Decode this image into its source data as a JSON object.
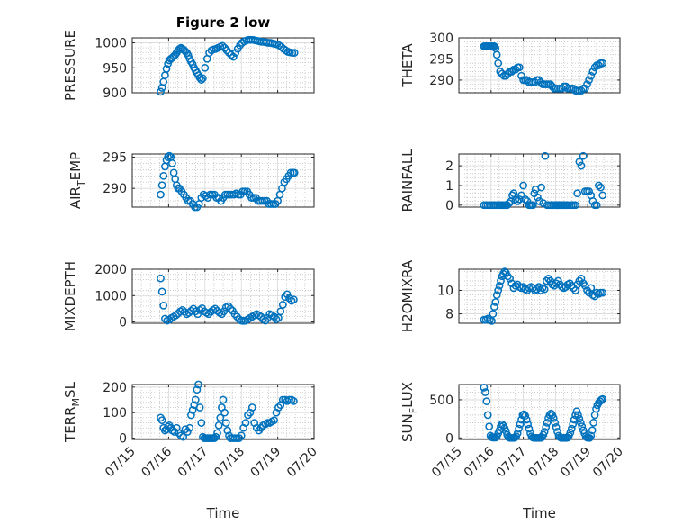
{
  "figure": {
    "title": "Figure 2 low",
    "marker_color": "#0072BD",
    "axis_color": "#262626",
    "grid_color": "#B0B0B0"
  },
  "chart_data": [
    {
      "id": "pressure",
      "type": "scatter",
      "title": "Figure 2 low",
      "xlabel": "",
      "ylabel": "PRESSURE",
      "ylabel_sub": null,
      "ylim": [
        900,
        1010
      ],
      "yticks": [
        "900",
        "950",
        "1000"
      ],
      "ytick_values": [
        900,
        950,
        1000
      ],
      "x": [
        15.78,
        15.82,
        15.86,
        15.9,
        15.94,
        15.98,
        16.02,
        16.06,
        16.1,
        16.14,
        16.18,
        16.22,
        16.26,
        16.3,
        16.34,
        16.38,
        16.42,
        16.46,
        16.5,
        16.54,
        16.58,
        16.62,
        16.66,
        16.7,
        16.74,
        16.78,
        16.82,
        16.86,
        16.9,
        16.94,
        17.0,
        17.06,
        17.12,
        17.18,
        17.24,
        17.3,
        17.36,
        17.42,
        17.48,
        17.54,
        17.6,
        17.66,
        17.72,
        17.78,
        17.84,
        17.9,
        17.96,
        18.02,
        18.08,
        18.14,
        18.2,
        18.26,
        18.32,
        18.38,
        18.44,
        18.5,
        18.56,
        18.62,
        18.68,
        18.74,
        18.8,
        18.86,
        18.92,
        18.98,
        19.04,
        19.1,
        19.16,
        19.22,
        19.28,
        19.34,
        19.4,
        19.46
      ],
      "y": [
        902,
        910,
        922,
        935,
        948,
        958,
        965,
        968,
        970,
        973,
        976,
        980,
        985,
        988,
        990,
        988,
        986,
        983,
        980,
        975,
        968,
        962,
        957,
        950,
        945,
        940,
        935,
        930,
        926,
        929,
        950,
        968,
        980,
        985,
        987,
        988,
        990,
        992,
        994,
        990,
        985,
        980,
        976,
        972,
        980,
        988,
        995,
        1000,
        1003,
        1005,
        1006,
        1006,
        1006,
        1005,
        1004,
        1003,
        1002,
        1002,
        1001,
        1000,
        1000,
        999,
        998,
        997,
        995,
        992,
        988,
        985,
        982,
        981,
        980,
        980
      ]
    },
    {
      "id": "theta",
      "type": "scatter",
      "xlabel": "",
      "ylabel": "THETA",
      "ylabel_sub": null,
      "ylim": [
        287,
        300
      ],
      "yticks": [
        "290",
        "295",
        "300"
      ],
      "ytick_values": [
        290,
        295,
        300
      ],
      "x": [
        15.78,
        15.82,
        15.86,
        15.9,
        15.94,
        15.98,
        16.02,
        16.06,
        16.1,
        16.14,
        16.18,
        16.22,
        16.28,
        16.34,
        16.4,
        16.46,
        16.52,
        16.58,
        16.64,
        16.7,
        16.76,
        16.82,
        16.88,
        16.94,
        17.0,
        17.06,
        17.12,
        17.18,
        17.24,
        17.3,
        17.36,
        17.42,
        17.48,
        17.54,
        17.6,
        17.66,
        17.72,
        17.78,
        17.84,
        17.9,
        17.96,
        18.02,
        18.08,
        18.14,
        18.2,
        18.26,
        18.32,
        18.38,
        18.44,
        18.5,
        18.56,
        18.62,
        18.68,
        18.74,
        18.8,
        18.86,
        18.92,
        18.98,
        19.04,
        19.1,
        19.16,
        19.22,
        19.28,
        19.34,
        19.4,
        19.46
      ],
      "y": [
        298,
        298,
        298,
        298,
        298,
        298,
        298,
        298,
        298,
        297.5,
        296,
        294,
        292,
        291.5,
        291,
        291,
        291.5,
        292,
        292,
        292.5,
        292.5,
        293,
        293,
        291,
        290,
        290,
        290,
        289.5,
        289.5,
        289.5,
        289.5,
        290,
        290,
        289.5,
        289,
        289,
        289,
        289,
        289,
        288.5,
        288,
        288,
        288,
        288,
        288,
        288.5,
        288.5,
        288,
        288,
        288,
        288,
        287.5,
        287.5,
        287.5,
        287.5,
        288,
        288,
        289,
        290,
        291,
        292,
        293,
        293.5,
        293.5,
        294,
        294
      ]
    },
    {
      "id": "air_temp",
      "type": "scatter",
      "xlabel": "",
      "ylabel": "AIR",
      "ylabel_sub": "T",
      "ylabel_tail": "EMP",
      "ylim": [
        287,
        295.5
      ],
      "yticks": [
        "290",
        "295"
      ],
      "ytick_values": [
        290,
        295
      ],
      "x": [
        15.78,
        15.82,
        15.86,
        15.9,
        15.94,
        15.98,
        16.02,
        16.06,
        16.1,
        16.14,
        16.18,
        16.22,
        16.26,
        16.3,
        16.36,
        16.42,
        16.48,
        16.54,
        16.6,
        16.66,
        16.72,
        16.78,
        16.84,
        16.9,
        16.96,
        17.02,
        17.08,
        17.14,
        17.2,
        17.26,
        17.32,
        17.38,
        17.44,
        17.5,
        17.56,
        17.62,
        17.68,
        17.74,
        17.8,
        17.86,
        17.92,
        17.98,
        18.04,
        18.1,
        18.16,
        18.22,
        18.28,
        18.34,
        18.4,
        18.46,
        18.52,
        18.58,
        18.64,
        18.7,
        18.76,
        18.82,
        18.88,
        18.94,
        19.0,
        19.06,
        19.12,
        19.18,
        19.24,
        19.3,
        19.36,
        19.42,
        19.46
      ],
      "y": [
        289,
        290.5,
        292,
        293.5,
        294.5,
        295,
        295.2,
        295,
        294,
        292.5,
        291.5,
        290.5,
        290,
        290,
        289.5,
        289,
        288.5,
        288,
        288,
        287.5,
        287,
        287,
        287.5,
        288.5,
        289,
        288.8,
        288.5,
        289,
        289,
        289,
        288.5,
        288.5,
        288,
        288.5,
        289,
        289,
        289,
        289,
        289,
        289.2,
        289,
        289,
        289.5,
        289.5,
        289.5,
        289,
        288.5,
        288.5,
        288.5,
        288,
        288,
        288,
        288,
        288,
        287.5,
        287.5,
        287.5,
        287.5,
        288,
        289,
        290,
        291,
        291.5,
        292,
        292.5,
        292.5,
        292.5
      ]
    },
    {
      "id": "rainfall",
      "type": "scatter",
      "xlabel": "",
      "ylabel": "RAINFALL",
      "ylabel_sub": null,
      "ylim": [
        -0.1,
        2.6
      ],
      "yticks": [
        "0",
        "1",
        "2"
      ],
      "ytick_values": [
        0,
        1,
        2
      ],
      "x": [
        15.78,
        15.84,
        15.9,
        15.96,
        16.02,
        16.08,
        16.14,
        16.2,
        16.26,
        16.3,
        16.34,
        16.38,
        16.42,
        16.46,
        16.5,
        16.56,
        16.62,
        16.66,
        16.7,
        16.76,
        16.82,
        16.88,
        16.94,
        17.0,
        17.06,
        17.12,
        17.18,
        17.22,
        17.26,
        17.3,
        17.34,
        17.38,
        17.44,
        17.5,
        17.56,
        17.62,
        17.68,
        17.74,
        17.8,
        17.86,
        17.92,
        17.98,
        18.02,
        18.04,
        18.06,
        18.08,
        18.1,
        18.14,
        18.18,
        18.22,
        18.26,
        18.3,
        18.34,
        18.38,
        18.44,
        18.5,
        18.56,
        18.62,
        18.68,
        18.74,
        18.8,
        18.86,
        18.92,
        18.98,
        19.04,
        19.1,
        19.16,
        19.22,
        19.28,
        19.34,
        19.4,
        19.46
      ],
      "y": [
        0,
        0,
        0,
        0,
        0,
        0,
        0,
        0,
        0,
        0,
        0,
        0,
        0,
        0,
        0,
        0.1,
        0.2,
        0.5,
        0.6,
        0.3,
        0.2,
        0.3,
        0.5,
        1.0,
        0.3,
        0.2,
        0,
        0,
        0,
        0,
        0.6,
        0.8,
        0.4,
        0.2,
        0.9,
        0.1,
        2.5,
        0,
        0,
        0,
        0,
        0,
        0,
        0,
        0,
        0,
        0,
        0,
        0,
        0,
        0,
        0,
        0,
        0,
        0,
        0,
        0,
        0,
        0.6,
        2.2,
        2.0,
        2.5,
        0.7,
        0.7,
        0.7,
        0.5,
        0.2,
        0,
        0,
        1.0,
        0.9,
        0.5
      ]
    },
    {
      "id": "mixdepth",
      "type": "scatter",
      "xlabel": "",
      "ylabel": "MIXDEPTH",
      "ylabel_sub": null,
      "ylim": [
        -50,
        2000
      ],
      "yticks": [
        "0",
        "1000",
        "2000"
      ],
      "ytick_values": [
        0,
        1000,
        2000
      ],
      "x": [
        15.78,
        15.82,
        15.86,
        15.9,
        15.96,
        16.02,
        16.08,
        16.14,
        16.2,
        16.26,
        16.32,
        16.38,
        16.44,
        16.5,
        16.56,
        16.62,
        16.68,
        16.74,
        16.8,
        16.86,
        16.92,
        16.98,
        17.04,
        17.1,
        17.16,
        17.22,
        17.28,
        17.34,
        17.4,
        17.46,
        17.52,
        17.58,
        17.64,
        17.7,
        17.76,
        17.82,
        17.88,
        17.94,
        18.0,
        18.06,
        18.12,
        18.18,
        18.24,
        18.3,
        18.36,
        18.42,
        18.48,
        18.54,
        18.6,
        18.66,
        18.72,
        18.78,
        18.84,
        18.9,
        18.96,
        19.02,
        19.08,
        19.14,
        19.2,
        19.26,
        19.32,
        19.38,
        19.44
      ],
      "y": [
        1650,
        1150,
        620,
        120,
        50,
        80,
        150,
        200,
        250,
        320,
        400,
        450,
        380,
        300,
        350,
        420,
        500,
        400,
        300,
        450,
        520,
        400,
        350,
        300,
        380,
        450,
        500,
        420,
        350,
        300,
        400,
        550,
        600,
        500,
        420,
        300,
        200,
        100,
        50,
        40,
        50,
        100,
        150,
        200,
        250,
        300,
        250,
        200,
        100,
        50,
        150,
        300,
        250,
        200,
        100,
        150,
        400,
        650,
        950,
        1050,
        900,
        800,
        850
      ]
    },
    {
      "id": "h2omixra",
      "type": "scatter",
      "xlabel": "",
      "ylabel": "H2OMIXRA",
      "ylabel_sub": null,
      "ylim": [
        7.2,
        11.8
      ],
      "yticks": [
        "8",
        "10"
      ],
      "ytick_values": [
        8,
        10
      ],
      "x": [
        15.78,
        15.84,
        15.9,
        15.96,
        16.02,
        16.06,
        16.1,
        16.14,
        16.18,
        16.22,
        16.26,
        16.3,
        16.34,
        16.38,
        16.42,
        16.46,
        16.52,
        16.58,
        16.64,
        16.7,
        16.76,
        16.82,
        16.88,
        16.94,
        17.0,
        17.06,
        17.12,
        17.18,
        17.24,
        17.3,
        17.36,
        17.42,
        17.48,
        17.54,
        17.6,
        17.66,
        17.72,
        17.78,
        17.84,
        17.9,
        17.96,
        18.02,
        18.08,
        18.14,
        18.2,
        18.26,
        18.32,
        18.38,
        18.44,
        18.5,
        18.56,
        18.62,
        18.68,
        18.74,
        18.8,
        18.86,
        18.92,
        18.98,
        19.04,
        19.1,
        19.16,
        19.22,
        19.28,
        19.34,
        19.4,
        19.46
      ],
      "y": [
        7.5,
        7.5,
        7.6,
        7.5,
        7.4,
        8.0,
        8.6,
        9.0,
        9.6,
        10.0,
        10.4,
        10.8,
        11.2,
        11.4,
        11.6,
        11.5,
        11.2,
        11.0,
        10.6,
        10.2,
        10.4,
        10.5,
        10.3,
        10.2,
        10.3,
        10.1,
        10.0,
        10.2,
        10.3,
        10.2,
        10.0,
        10.1,
        10.3,
        10.0,
        10.2,
        10.1,
        10.8,
        11.0,
        10.8,
        10.5,
        10.4,
        10.6,
        10.8,
        10.5,
        10.3,
        10.2,
        10.3,
        10.5,
        10.6,
        10.4,
        10.2,
        10.0,
        10.5,
        10.8,
        11.0,
        10.6,
        10.4,
        10.0,
        9.8,
        10.2,
        9.6,
        9.5,
        9.8,
        9.7,
        9.8,
        9.8
      ]
    },
    {
      "id": "terr_msl",
      "type": "scatter",
      "xlabel": "Time",
      "ylabel": "TERR",
      "ylabel_sub": "M",
      "ylabel_tail": "SL",
      "ylim": [
        -5,
        210
      ],
      "yticks": [
        "0",
        "100",
        "200"
      ],
      "ytick_values": [
        0,
        100,
        200
      ],
      "xticks": [
        "07/15",
        "07/16",
        "07/17",
        "07/18",
        "07/19",
        "07/20"
      ],
      "x": [
        15.78,
        15.82,
        15.86,
        15.9,
        15.94,
        15.98,
        16.02,
        16.06,
        16.1,
        16.16,
        16.22,
        16.28,
        16.34,
        16.4,
        16.46,
        16.52,
        16.58,
        16.62,
        16.66,
        16.7,
        16.74,
        16.78,
        16.82,
        16.86,
        16.9,
        16.94,
        16.98,
        17.02,
        17.06,
        17.1,
        17.14,
        17.18,
        17.22,
        17.26,
        17.3,
        17.34,
        17.38,
        17.42,
        17.46,
        17.5,
        17.54,
        17.58,
        17.62,
        17.66,
        17.7,
        17.76,
        17.82,
        17.88,
        17.94,
        18.0,
        18.06,
        18.12,
        18.18,
        18.24,
        18.3,
        18.36,
        18.42,
        18.48,
        18.54,
        18.6,
        18.66,
        18.72,
        18.78,
        18.84,
        18.9,
        18.96,
        19.02,
        19.08,
        19.14,
        19.2,
        19.26,
        19.32,
        19.38,
        19.44
      ],
      "y": [
        80,
        70,
        40,
        30,
        35,
        45,
        50,
        40,
        30,
        25,
        40,
        20,
        10,
        5,
        35,
        25,
        40,
        90,
        110,
        130,
        150,
        190,
        210,
        120,
        60,
        5,
        0,
        0,
        0,
        0,
        0,
        0,
        0,
        0,
        5,
        20,
        50,
        80,
        120,
        150,
        100,
        60,
        30,
        10,
        0,
        0,
        0,
        0,
        0,
        10,
        40,
        60,
        90,
        100,
        120,
        60,
        40,
        30,
        40,
        50,
        55,
        60,
        60,
        65,
        70,
        100,
        120,
        130,
        150,
        150,
        145,
        150,
        150,
        145
      ]
    },
    {
      "id": "sun_flux",
      "type": "scatter",
      "xlabel": "Time",
      "ylabel": "SUN",
      "ylabel_sub": "F",
      "ylabel_tail": "LUX",
      "ylim": [
        -20,
        700
      ],
      "yticks": [
        "0",
        "500"
      ],
      "ytick_values": [
        0,
        500
      ],
      "xticks": [
        "07/15",
        "07/16",
        "07/17",
        "07/18",
        "07/19",
        "07/20"
      ],
      "x": [
        15.78,
        15.82,
        15.86,
        15.9,
        15.94,
        15.98,
        16.02,
        16.06,
        16.1,
        16.14,
        16.18,
        16.22,
        16.26,
        16.3,
        16.34,
        16.38,
        16.42,
        16.46,
        16.5,
        16.54,
        16.58,
        16.62,
        16.66,
        16.7,
        16.74,
        16.78,
        16.82,
        16.86,
        16.9,
        16.94,
        16.98,
        17.02,
        17.06,
        17.1,
        17.14,
        17.18,
        17.22,
        17.26,
        17.3,
        17.34,
        17.38,
        17.42,
        17.46,
        17.5,
        17.54,
        17.58,
        17.62,
        17.66,
        17.7,
        17.74,
        17.78,
        17.82,
        17.86,
        17.9,
        17.94,
        17.98,
        18.02,
        18.06,
        18.1,
        18.14,
        18.18,
        18.22,
        18.26,
        18.3,
        18.34,
        18.38,
        18.42,
        18.46,
        18.5,
        18.54,
        18.58,
        18.62,
        18.66,
        18.7,
        18.74,
        18.78,
        18.82,
        18.86,
        18.9,
        18.94,
        18.98,
        19.02,
        19.06,
        19.1,
        19.14,
        19.18,
        19.22,
        19.26,
        19.3,
        19.34,
        19.38,
        19.42,
        19.46
      ],
      "y": [
        660,
        600,
        480,
        300,
        150,
        30,
        10,
        5,
        5,
        5,
        20,
        60,
        100,
        150,
        180,
        160,
        130,
        90,
        40,
        10,
        0,
        0,
        0,
        0,
        5,
        20,
        60,
        120,
        180,
        240,
        300,
        310,
        290,
        240,
        180,
        120,
        60,
        20,
        5,
        0,
        0,
        0,
        0,
        0,
        0,
        10,
        40,
        80,
        140,
        200,
        260,
        300,
        320,
        300,
        260,
        200,
        140,
        80,
        30,
        10,
        0,
        0,
        0,
        0,
        0,
        5,
        30,
        70,
        120,
        180,
        240,
        300,
        350,
        300,
        250,
        200,
        150,
        100,
        60,
        20,
        5,
        0,
        0,
        30,
        100,
        200,
        300,
        380,
        430,
        460,
        480,
        500,
        510
      ]
    }
  ]
}
